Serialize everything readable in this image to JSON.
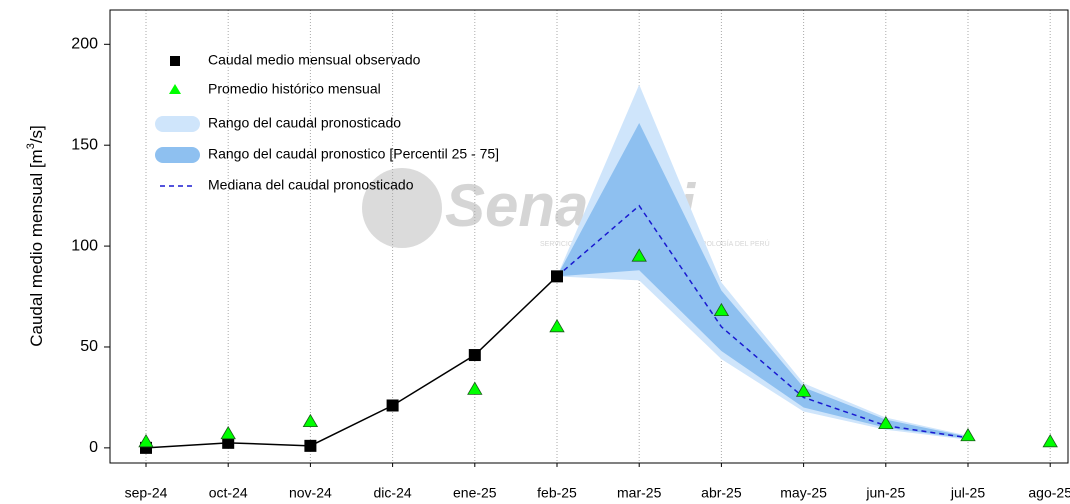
{
  "chart_data": {
    "type": "line",
    "ylabel": {
      "text": "Caudal medio mensual  [m",
      "sup": "3",
      "after": "/s]"
    },
    "watermark": {
      "title": "Senamhi",
      "subtitle": "SERVICIO NACIONAL DE METEOROLOGÍA E HIDROLOGÍA DEL PERÚ"
    },
    "categories": [
      "sep-24",
      "oct-24",
      "nov-24",
      "dic-24",
      "ene-25",
      "feb-25",
      "mar-25",
      "abr-25",
      "may-25",
      "jun-25",
      "jul-25",
      "ago-25"
    ],
    "ylim": [
      -7.5,
      217
    ],
    "yticks": [
      0,
      50,
      100,
      150,
      200
    ],
    "grid": true,
    "legend": "top-left",
    "series": [
      {
        "name": "Caudal medio mensual observado",
        "kind": "line-square",
        "color": "#000000",
        "values": [
          0,
          2.5,
          1,
          21,
          46,
          85,
          null,
          null,
          null,
          null,
          null,
          null
        ]
      },
      {
        "name": "Promedio histórico mensual",
        "kind": "triangle",
        "color": "#00ff00",
        "values": [
          3,
          7,
          13,
          null,
          29,
          60,
          95,
          68,
          28,
          12,
          6,
          3
        ]
      },
      {
        "name": "Rango del caudal pronosticado",
        "kind": "range",
        "color": "#cfe5fb",
        "low": [
          null,
          null,
          null,
          null,
          null,
          85,
          83,
          44,
          18,
          9,
          4,
          null
        ],
        "high": [
          null,
          null,
          null,
          null,
          null,
          85,
          180,
          82,
          32,
          15,
          6,
          null
        ]
      },
      {
        "name": "Rango del caudal pronostico [Percentil 25 - 75]",
        "kind": "range",
        "color": "#8ec0f0",
        "low": [
          null,
          null,
          null,
          null,
          null,
          85,
          88,
          48,
          20,
          10,
          4.5,
          null
        ],
        "high": [
          null,
          null,
          null,
          null,
          null,
          85,
          161,
          78,
          30,
          14,
          5.5,
          null
        ]
      },
      {
        "name": "Mediana del caudal pronosticado",
        "kind": "dashed",
        "color": "#1a1ad0",
        "values": [
          null,
          null,
          null,
          null,
          null,
          85,
          120,
          60,
          25,
          11,
          5,
          null
        ]
      }
    ]
  }
}
